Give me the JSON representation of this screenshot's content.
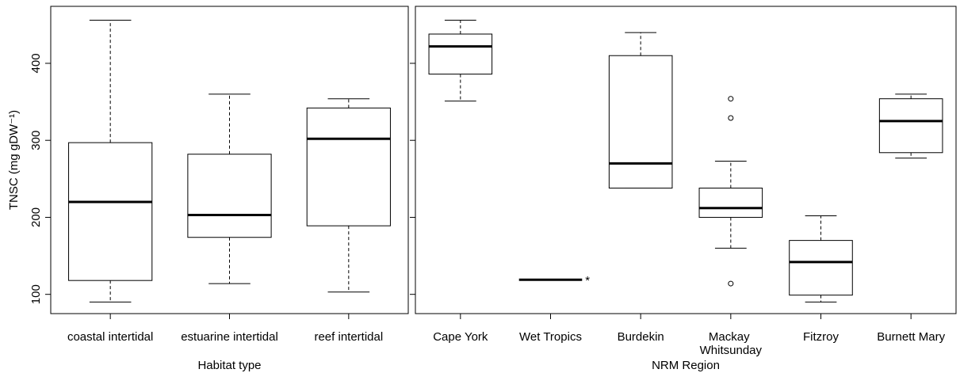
{
  "chart_data": [
    {
      "type": "box",
      "xlabel": "Habitat type",
      "ylabel": "TNSC (mg gDW⁻¹)",
      "categories": [
        "coastal intertidal",
        "estuarine intertidal",
        "reef intertidal"
      ],
      "boxes": [
        {
          "min": 90,
          "q1": 118,
          "median": 220,
          "q3": 297,
          "max": 456,
          "outliers": []
        },
        {
          "min": 114,
          "q1": 174,
          "median": 203,
          "q3": 282,
          "max": 360,
          "outliers": []
        },
        {
          "min": 103,
          "q1": 189,
          "median": 302,
          "q3": 342,
          "max": 354,
          "outliers": []
        }
      ],
      "ylim": [
        75,
        474
      ],
      "yticks": [
        100,
        200,
        300,
        400
      ],
      "show_ytick_labels": true
    },
    {
      "type": "box",
      "xlabel": "NRM Region",
      "categories": [
        "Cape York",
        "Wet Tropics",
        "Burdekin",
        "Mackay Whitsunday",
        "Fitzroy",
        "Burnett Mary"
      ],
      "boxes": [
        {
          "min": 351,
          "q1": 386,
          "median": 422,
          "q3": 438,
          "max": 456,
          "outliers": []
        },
        {
          "median": 119,
          "note": "*",
          "outliers": []
        },
        {
          "min": 238,
          "q1": 238,
          "median": 270,
          "q3": 410,
          "max": 440,
          "outliers": []
        },
        {
          "min": 160,
          "q1": 200,
          "median": 212,
          "q3": 238,
          "max": 273,
          "outliers": [
            354,
            329,
            114
          ]
        },
        {
          "min": 90,
          "q1": 99,
          "median": 142,
          "q3": 170,
          "max": 202,
          "outliers": []
        },
        {
          "min": 277,
          "q1": 284,
          "median": 325,
          "q3": 354,
          "max": 360,
          "outliers": []
        }
      ],
      "ylim": [
        75,
        474
      ],
      "yticks": [
        100,
        200,
        300,
        400
      ],
      "show_ytick_labels": false
    }
  ]
}
